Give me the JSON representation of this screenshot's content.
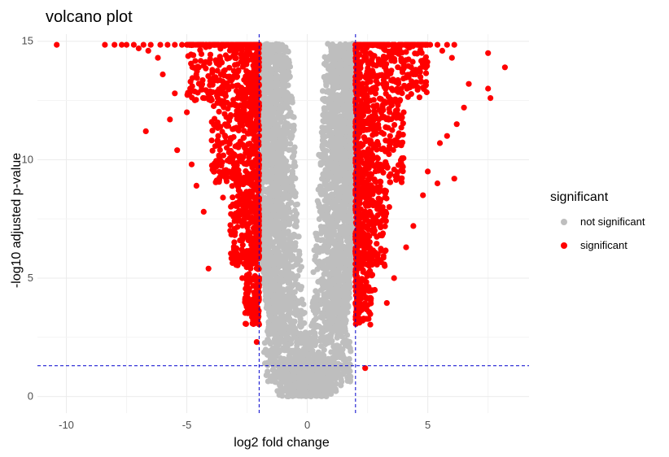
{
  "chart_data": {
    "type": "scatter",
    "title": "volcano plot",
    "xlabel": "log2 fold change",
    "ylabel": "-log10 adjusted p-value",
    "xlim": [
      -11.2,
      9.2
    ],
    "ylim": [
      -0.7,
      15.3
    ],
    "x_ticks": [
      -10,
      -5,
      0,
      5
    ],
    "y_ticks": [
      0,
      5,
      10,
      15
    ],
    "grid": true,
    "thresholds": {
      "fold_change_abs": 2,
      "neg_log10_padj": 1.3
    },
    "legend": {
      "title": "significant",
      "position": "right",
      "entries": [
        {
          "label": "not significant",
          "color": "#bebebe"
        },
        {
          "label": "significant",
          "color": "#ff0000"
        }
      ]
    },
    "colors": {
      "not_significant": "#bebebe",
      "significant": "#ff0000",
      "threshold_line": "#0000cd"
    },
    "series": [
      {
        "name": "significant",
        "points": [
          [
            -10.4,
            14.85
          ],
          [
            -8.4,
            14.85
          ],
          [
            -8.0,
            14.85
          ],
          [
            -7.7,
            14.85
          ],
          [
            -7.5,
            14.85
          ],
          [
            -7.2,
            14.85
          ],
          [
            -6.8,
            14.85
          ],
          [
            -6.5,
            14.85
          ],
          [
            -6.1,
            14.85
          ],
          [
            -5.8,
            14.85
          ],
          [
            -5.5,
            14.85
          ],
          [
            -5.2,
            14.85
          ],
          [
            -7.0,
            14.7
          ],
          [
            -6.6,
            14.6
          ],
          [
            -6.2,
            14.3
          ],
          [
            -6.7,
            11.2
          ],
          [
            -5.7,
            11.7
          ],
          [
            -5.4,
            10.4
          ],
          [
            -6.0,
            13.6
          ],
          [
            -5.5,
            12.8
          ],
          [
            -5.0,
            12.0
          ],
          [
            -4.8,
            9.8
          ],
          [
            -4.6,
            8.9
          ],
          [
            -4.3,
            7.8
          ],
          [
            -4.1,
            5.4
          ],
          [
            -4.5,
            13.9
          ],
          [
            -4.0,
            12.5
          ],
          [
            -3.7,
            11.0
          ],
          [
            -3.5,
            8.4
          ],
          [
            -3.2,
            7.0
          ],
          [
            -3.0,
            6.2
          ],
          [
            -2.7,
            5.0
          ],
          [
            -2.5,
            4.2
          ],
          [
            -2.3,
            3.6
          ],
          [
            -2.1,
            2.3
          ],
          [
            -3.8,
            14.2
          ],
          [
            -3.3,
            13.5
          ],
          [
            -2.9,
            12.6
          ],
          [
            -2.6,
            10.5
          ],
          [
            -2.4,
            9.0
          ],
          [
            -2.2,
            7.5
          ],
          [
            -2.05,
            6.0
          ]
        ],
        "clusters": [
          {
            "x_range": [
              -5.0,
              -2.0
            ],
            "y_range": [
              12.5,
              14.85
            ],
            "count": 380
          },
          {
            "x_range": [
              -4.0,
              -2.0
            ],
            "y_range": [
              9.0,
              12.5
            ],
            "count": 320
          },
          {
            "x_range": [
              -3.2,
              -2.0
            ],
            "y_range": [
              5.5,
              9.0
            ],
            "count": 260
          },
          {
            "x_range": [
              -2.6,
              -2.0
            ],
            "y_range": [
              3.0,
              5.5
            ],
            "count": 110
          },
          {
            "x_range": [
              2.0,
              5.0
            ],
            "y_range": [
              12.5,
              14.85
            ],
            "count": 380
          },
          {
            "x_range": [
              2.0,
              4.0
            ],
            "y_range": [
              9.0,
              12.5
            ],
            "count": 320
          },
          {
            "x_range": [
              2.0,
              3.3
            ],
            "y_range": [
              5.5,
              9.0
            ],
            "count": 260
          },
          {
            "x_range": [
              2.0,
              2.7
            ],
            "y_range": [
              3.0,
              5.5
            ],
            "count": 110
          }
        ],
        "points_right": [
          [
            5.1,
            14.85
          ],
          [
            5.4,
            14.85
          ],
          [
            5.8,
            14.85
          ],
          [
            6.1,
            14.85
          ],
          [
            5.6,
            14.6
          ],
          [
            6.0,
            14.3
          ],
          [
            7.5,
            14.5
          ],
          [
            8.2,
            13.9
          ],
          [
            7.5,
            13.0
          ],
          [
            7.6,
            12.6
          ],
          [
            6.7,
            13.2
          ],
          [
            6.5,
            12.2
          ],
          [
            6.2,
            11.5
          ],
          [
            5.8,
            11.0
          ],
          [
            5.5,
            10.7
          ],
          [
            6.1,
            9.2
          ],
          [
            5.4,
            9.0
          ],
          [
            5.0,
            9.5
          ],
          [
            4.8,
            8.5
          ],
          [
            4.4,
            7.2
          ],
          [
            4.1,
            6.3
          ],
          [
            3.6,
            5.0
          ],
          [
            3.3,
            3.95
          ],
          [
            2.8,
            4.5
          ],
          [
            2.4,
            1.2
          ],
          [
            4.5,
            13.8
          ],
          [
            4.0,
            12.0
          ],
          [
            3.7,
            10.8
          ],
          [
            3.4,
            8.0
          ],
          [
            3.1,
            6.8
          ],
          [
            2.9,
            5.9
          ],
          [
            2.6,
            5.3
          ],
          [
            2.3,
            3.8
          ],
          [
            2.1,
            3.2
          ],
          [
            3.9,
            14.2
          ],
          [
            3.5,
            13.0
          ],
          [
            3.0,
            12.1
          ],
          [
            2.7,
            10.2
          ],
          [
            2.5,
            8.6
          ],
          [
            2.2,
            7.1
          ],
          [
            2.05,
            5.8
          ]
        ]
      },
      {
        "name": "not significant",
        "shape": "v-shaped band",
        "x_center": 0,
        "inner_gap_by_y": [
          [
            15,
            0.7
          ],
          [
            12,
            0.55
          ],
          [
            9,
            0.4
          ],
          [
            6,
            0.25
          ],
          [
            3,
            0.05
          ],
          [
            0,
            0
          ]
        ],
        "outer_limit_by_y": [
          [
            15,
            2.0
          ],
          [
            10,
            2.0
          ],
          [
            6,
            2.0
          ],
          [
            3,
            1.6
          ],
          [
            1.3,
            2.0
          ],
          [
            0.3,
            1.4
          ]
        ],
        "count": 4200
      }
    ]
  }
}
